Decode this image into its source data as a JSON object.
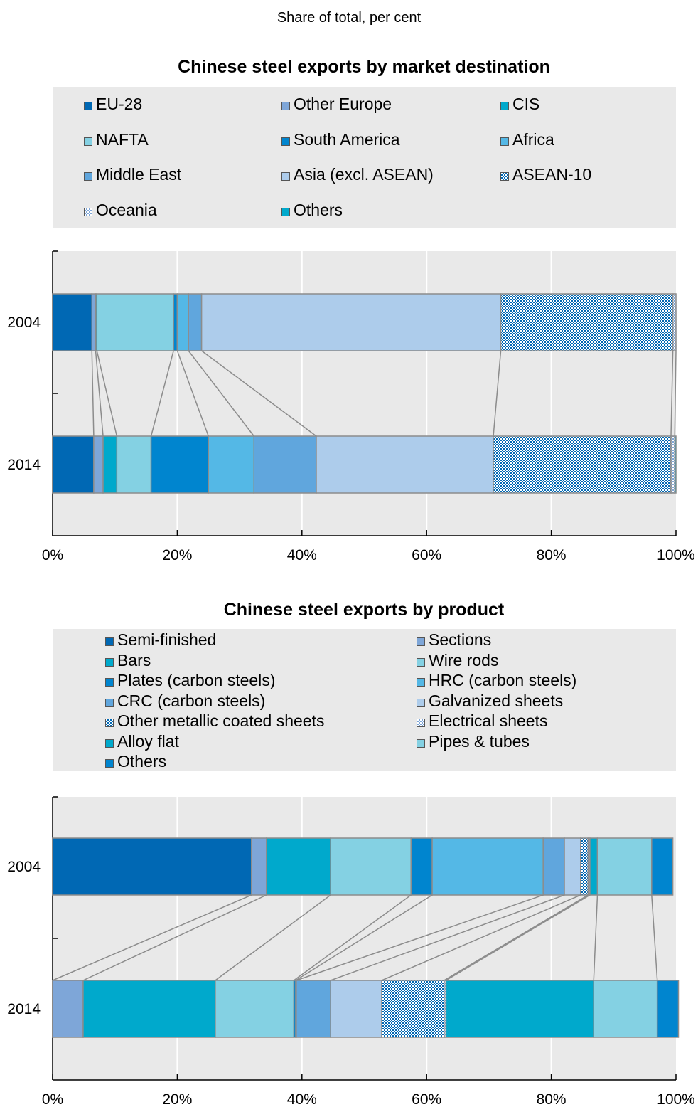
{
  "subtitle": "Share of total, per cent",
  "colors": {
    "dark_blue": "#0068b4",
    "steel_blue": "#7ea6d8",
    "teal": "#00a9cc",
    "light_teal": "#84d1e3",
    "blue": "#0085cf",
    "sky": "#54b8e6",
    "mid_blue": "#60a6dd",
    "pale_blue": "#adcceb",
    "pattern": "checkerboard-blue",
    "plot_bg": "#e9e9e9",
    "connector": "#8c8c8c"
  },
  "chart_data": [
    {
      "type": "bar",
      "orientation": "horizontal-stacked",
      "title": "Chinese steel exports by market destination",
      "categories": [
        "2004",
        "2014"
      ],
      "x_ticks": [
        "0%",
        "20%",
        "40%",
        "60%",
        "80%",
        "100%"
      ],
      "xlim": [
        0,
        100
      ],
      "grid": true,
      "legend_position": "top",
      "series": [
        {
          "name": "EU-28",
          "color": "#0068b4",
          "values": [
            6.3,
            6.6
          ]
        },
        {
          "name": "Other Europe",
          "color": "#7ea6d8",
          "values": [
            0.6,
            1.5
          ]
        },
        {
          "name": "CIS",
          "color": "#00a9cc",
          "values": [
            0.2,
            2.2
          ]
        },
        {
          "name": "NAFTA",
          "color": "#84d1e3",
          "values": [
            12.3,
            5.5
          ]
        },
        {
          "name": "South America",
          "color": "#0085cf",
          "values": [
            0.6,
            9.2
          ]
        },
        {
          "name": "Africa",
          "color": "#54b8e6",
          "values": [
            1.8,
            7.3
          ]
        },
        {
          "name": "Middle East",
          "color": "#60a6dd",
          "values": [
            2.1,
            10.0
          ]
        },
        {
          "name": "Asia (excl. ASEAN)",
          "color": "#adcceb",
          "values": [
            48.0,
            28.4
          ]
        },
        {
          "name": "ASEAN-10",
          "color": "pattern-dark",
          "values": [
            27.6,
            28.5
          ]
        },
        {
          "name": "Oceania",
          "color": "pattern-light",
          "values": [
            0.5,
            0.6
          ]
        },
        {
          "name": "Others",
          "color": "#00a9cc",
          "values": [
            0.0,
            0.2
          ]
        }
      ]
    },
    {
      "type": "bar",
      "orientation": "horizontal-stacked",
      "title": "Chinese steel exports by product",
      "categories": [
        "2004",
        "2014"
      ],
      "x_ticks": [
        "0%",
        "20%",
        "40%",
        "60%",
        "80%",
        "100%"
      ],
      "xlim": [
        0,
        100
      ],
      "grid": true,
      "legend_position": "top",
      "series": [
        {
          "name": "Semi-finished",
          "color": "#0068b4",
          "values": [
            31.9,
            0.0
          ]
        },
        {
          "name": "Sections",
          "color": "#7ea6d8",
          "values": [
            2.4,
            4.9
          ]
        },
        {
          "name": "Bars",
          "color": "#00a9cc",
          "values": [
            10.3,
            21.2
          ]
        },
        {
          "name": "Wire rods",
          "color": "#84d1e3",
          "values": [
            12.9,
            12.6
          ]
        },
        {
          "name": "Plates (carbon steels)",
          "color": "#0085cf",
          "values": [
            3.4,
            0.3
          ]
        },
        {
          "name": "HRC (carbon steels)",
          "color": "#54b8e6",
          "values": [
            17.8,
            0.1
          ]
        },
        {
          "name": "CRC (carbon steels)",
          "color": "#60a6dd",
          "values": [
            3.4,
            5.5
          ]
        },
        {
          "name": "Galvanized sheets",
          "color": "#adcceb",
          "values": [
            2.6,
            8.2
          ]
        },
        {
          "name": "Other metallic coated sheets",
          "color": "pattern-dark",
          "values": [
            1.2,
            10.0
          ]
        },
        {
          "name": "Electrical sheets",
          "color": "pattern-light",
          "values": [
            0.3,
            0.3
          ]
        },
        {
          "name": "Alloy flat",
          "color": "#00a9cc",
          "values": [
            1.2,
            23.7
          ]
        },
        {
          "name": "Pipes & tubes",
          "color": "#84d1e3",
          "values": [
            8.7,
            10.2
          ]
        },
        {
          "name": "Others",
          "color": "#0085cf",
          "values": [
            3.4,
            3.4
          ]
        }
      ]
    }
  ]
}
